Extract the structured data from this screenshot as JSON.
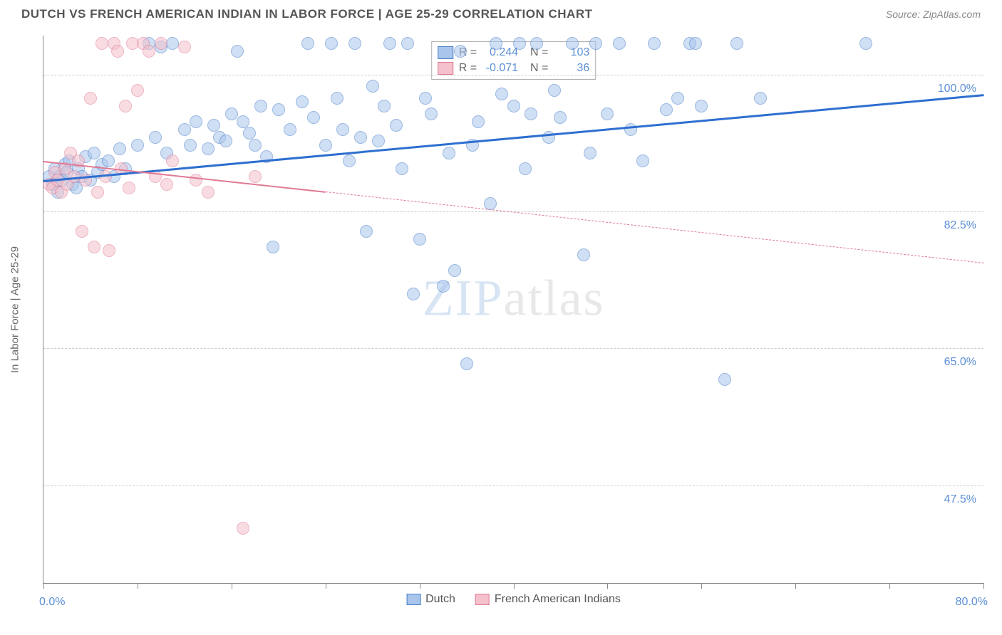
{
  "header": {
    "title": "DUTCH VS FRENCH AMERICAN INDIAN IN LABOR FORCE | AGE 25-29 CORRELATION CHART",
    "source": "Source: ZipAtlas.com"
  },
  "watermark": {
    "left": "ZIP",
    "right": "atlas"
  },
  "chart": {
    "type": "scatter",
    "ylabel": "In Labor Force | Age 25-29",
    "background_color": "#ffffff",
    "grid_color": "#cccccc",
    "axis_color": "#888888",
    "tick_label_color": "#5b8fd6",
    "tick_fontsize": 16,
    "xlim": [
      0,
      80
    ],
    "ylim": [
      35,
      105
    ],
    "xlim_labels": {
      "min": "0.0%",
      "max": "80.0%"
    },
    "xticks": [
      0,
      8,
      16,
      24,
      32,
      40,
      48,
      56,
      64,
      72,
      80
    ],
    "yticks": [
      {
        "v": 47.5,
        "label": "47.5%"
      },
      {
        "v": 65.0,
        "label": "65.0%"
      },
      {
        "v": 82.5,
        "label": "82.5%"
      },
      {
        "v": 100.0,
        "label": "100.0%"
      }
    ],
    "point_radius": 9,
    "point_opacity": 0.55,
    "series": [
      {
        "name": "Dutch",
        "color_fill": "#a9c5ec",
        "color_stroke": "#4a7fc9",
        "r_value": "0.244",
        "n_value": "103",
        "trend": {
          "x1": 0,
          "y1": 86.5,
          "x2": 80,
          "y2": 97.5,
          "solid_until_x": 80,
          "color": "#2e6fd0",
          "width": 3
        },
        "points": [
          [
            0.5,
            87
          ],
          [
            0.8,
            86
          ],
          [
            1.0,
            88
          ],
          [
            1.2,
            85
          ],
          [
            1.4,
            87
          ],
          [
            1.6,
            86.5
          ],
          [
            1.8,
            88.5
          ],
          [
            2.0,
            87.5
          ],
          [
            2.2,
            89
          ],
          [
            2.5,
            86
          ],
          [
            2.8,
            85.5
          ],
          [
            3.0,
            88
          ],
          [
            3.3,
            87
          ],
          [
            3.6,
            89.5
          ],
          [
            4.0,
            86.5
          ],
          [
            4.3,
            90
          ],
          [
            4.6,
            87.5
          ],
          [
            5.0,
            88.5
          ],
          [
            5.5,
            89
          ],
          [
            6.0,
            87
          ],
          [
            6.5,
            90.5
          ],
          [
            7.0,
            88
          ],
          [
            8.0,
            91
          ],
          [
            9.0,
            104
          ],
          [
            9.5,
            92
          ],
          [
            10,
            103.5
          ],
          [
            10.5,
            90
          ],
          [
            11,
            104
          ],
          [
            12,
            93
          ],
          [
            12.5,
            91
          ],
          [
            13,
            94
          ],
          [
            14,
            90.5
          ],
          [
            14.5,
            93.5
          ],
          [
            15,
            92
          ],
          [
            15.5,
            91.5
          ],
          [
            16,
            95
          ],
          [
            16.5,
            103
          ],
          [
            17,
            94
          ],
          [
            17.5,
            92.5
          ],
          [
            18,
            91
          ],
          [
            18.5,
            96
          ],
          [
            19,
            89.5
          ],
          [
            19.5,
            78
          ],
          [
            20,
            95.5
          ],
          [
            21,
            93
          ],
          [
            22,
            96.5
          ],
          [
            22.5,
            104
          ],
          [
            23,
            94.5
          ],
          [
            24,
            91
          ],
          [
            24.5,
            104
          ],
          [
            25,
            97
          ],
          [
            25.5,
            93
          ],
          [
            26,
            89
          ],
          [
            26.5,
            104
          ],
          [
            27,
            92
          ],
          [
            27.5,
            80
          ],
          [
            28,
            98.5
          ],
          [
            28.5,
            91.5
          ],
          [
            29,
            96
          ],
          [
            29.5,
            104
          ],
          [
            30,
            93.5
          ],
          [
            30.5,
            88
          ],
          [
            31,
            104
          ],
          [
            31.5,
            72
          ],
          [
            32,
            79
          ],
          [
            32.5,
            97
          ],
          [
            33,
            95
          ],
          [
            34,
            73
          ],
          [
            34.5,
            90
          ],
          [
            35,
            75
          ],
          [
            35.5,
            103
          ],
          [
            36,
            63
          ],
          [
            36.5,
            91
          ],
          [
            37,
            94
          ],
          [
            38,
            83.5
          ],
          [
            38.5,
            104
          ],
          [
            39,
            97.5
          ],
          [
            40,
            96
          ],
          [
            40.5,
            104
          ],
          [
            41,
            88
          ],
          [
            41.5,
            95
          ],
          [
            42,
            104
          ],
          [
            43,
            92
          ],
          [
            43.5,
            98
          ],
          [
            44,
            94.5
          ],
          [
            45,
            104
          ],
          [
            46,
            77
          ],
          [
            46.5,
            90
          ],
          [
            47,
            104
          ],
          [
            48,
            95
          ],
          [
            49,
            104
          ],
          [
            50,
            93
          ],
          [
            51,
            89
          ],
          [
            52,
            104
          ],
          [
            53,
            95.5
          ],
          [
            54,
            97
          ],
          [
            55,
            104
          ],
          [
            55.5,
            104
          ],
          [
            56,
            96
          ],
          [
            58,
            61
          ],
          [
            59,
            104
          ],
          [
            61,
            97
          ],
          [
            70,
            104
          ]
        ]
      },
      {
        "name": "French American Indians",
        "color_fill": "#f4c1cc",
        "color_stroke": "#e07a94",
        "r_value": "-0.071",
        "n_value": "36",
        "trend": {
          "x1": 0,
          "y1": 89.0,
          "x2": 80,
          "y2": 76.0,
          "solid_until_x": 24,
          "color": "#e07a94",
          "width": 2
        },
        "points": [
          [
            0.5,
            86
          ],
          [
            0.8,
            85.5
          ],
          [
            1.0,
            87.5
          ],
          [
            1.2,
            86.5
          ],
          [
            1.5,
            85
          ],
          [
            1.8,
            88
          ],
          [
            2.0,
            86
          ],
          [
            2.3,
            90
          ],
          [
            2.6,
            87
          ],
          [
            3.0,
            89
          ],
          [
            3.3,
            80
          ],
          [
            3.6,
            86.5
          ],
          [
            4.0,
            97
          ],
          [
            4.3,
            78
          ],
          [
            4.6,
            85
          ],
          [
            5.0,
            104
          ],
          [
            5.3,
            87
          ],
          [
            5.6,
            77.5
          ],
          [
            6.0,
            104
          ],
          [
            6.3,
            103
          ],
          [
            6.6,
            88
          ],
          [
            7.0,
            96
          ],
          [
            7.3,
            85.5
          ],
          [
            7.6,
            104
          ],
          [
            8.0,
            98
          ],
          [
            8.5,
            104
          ],
          [
            9.0,
            103
          ],
          [
            9.5,
            87
          ],
          [
            10,
            104
          ],
          [
            10.5,
            86
          ],
          [
            11,
            89
          ],
          [
            12,
            103.5
          ],
          [
            13,
            86.5
          ],
          [
            14,
            85
          ],
          [
            17,
            42
          ],
          [
            18,
            87
          ]
        ]
      }
    ],
    "legend": [
      {
        "label": "Dutch",
        "fill": "#a9c5ec",
        "stroke": "#4a7fc9"
      },
      {
        "label": "French American Indians",
        "fill": "#f4c1cc",
        "stroke": "#e07a94"
      }
    ]
  }
}
